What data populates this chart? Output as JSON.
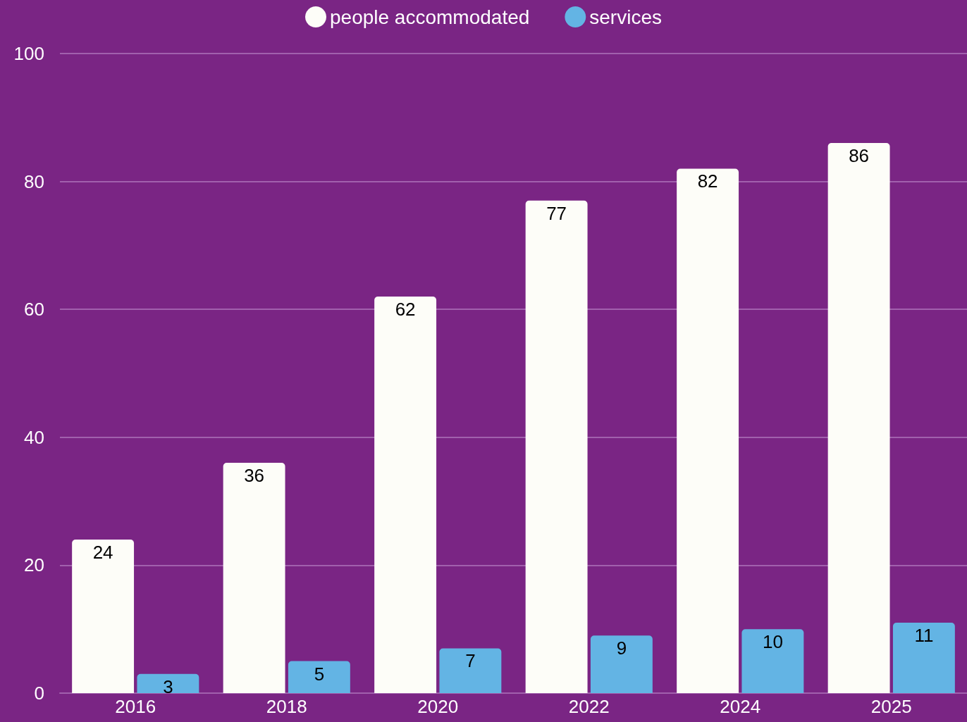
{
  "chart_data": {
    "type": "bar",
    "categories": [
      "2016",
      "2018",
      "2020",
      "2022",
      "2024",
      "2025"
    ],
    "series": [
      {
        "name": "people accommodated",
        "color": "#fdfdf8",
        "values": [
          24,
          36,
          62,
          77,
          82,
          86
        ]
      },
      {
        "name": "services",
        "color": "#63b4e4",
        "values": [
          3,
          5,
          7,
          9,
          10,
          11
        ]
      }
    ],
    "ylim": [
      0,
      100
    ],
    "yticks": [
      0,
      20,
      40,
      60,
      80,
      100
    ],
    "grid": "y",
    "legend": "top",
    "data_labels": true
  }
}
